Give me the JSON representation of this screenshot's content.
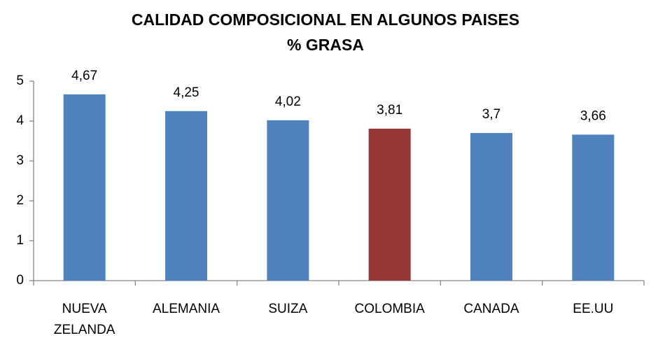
{
  "chart_data": {
    "type": "bar",
    "title": "CALIDAD COMPOSICIONAL EN ALGUNOS PAISES",
    "subtitle": "% GRASA",
    "categories": [
      "NUEVA ZELANDA",
      "ALEMANIA",
      "SUIZA",
      "COLOMBIA",
      "CANADA",
      "EE.UU"
    ],
    "values": [
      4.67,
      4.25,
      4.02,
      3.81,
      3.7,
      3.66
    ],
    "value_labels": [
      "4,67",
      "4,25",
      "4,02",
      "3,81",
      "3,7",
      "3,66"
    ],
    "colors": [
      "#4f81bd",
      "#4f81bd",
      "#4f81bd",
      "#953735",
      "#4f81bd",
      "#4f81bd"
    ],
    "ylim": [
      0,
      5
    ],
    "yticks": [
      0,
      1,
      2,
      3,
      4,
      5
    ],
    "grid": false
  }
}
